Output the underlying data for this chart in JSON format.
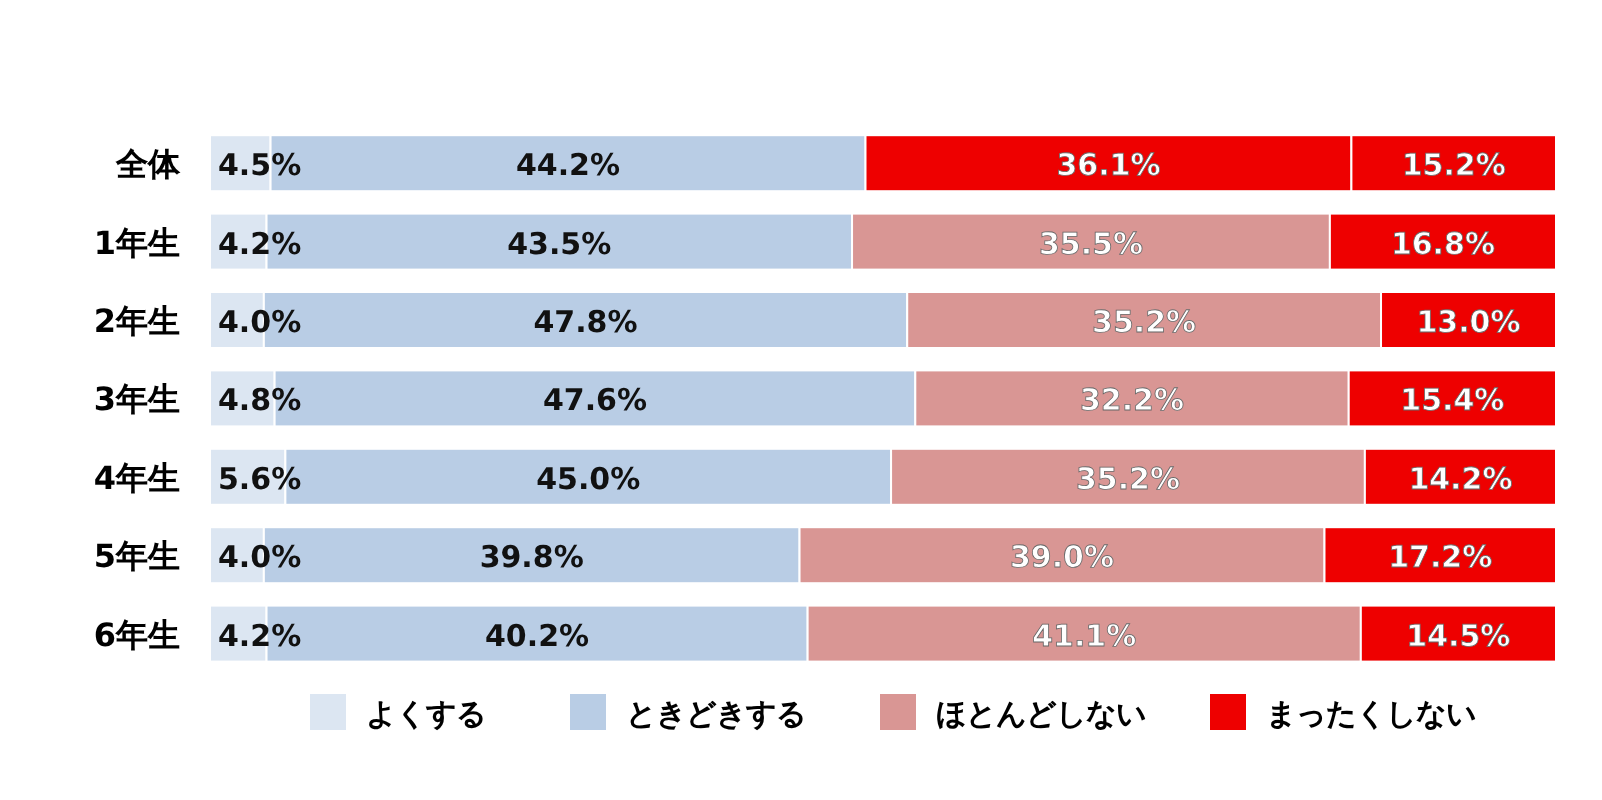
{
  "chart_data": {
    "type": "bar",
    "orientation": "horizontal",
    "stacked": true,
    "legend": "bottom",
    "categories": [
      "全体",
      "1年生",
      "2年生",
      "3年生",
      "4年生",
      "5年生",
      "6年生"
    ],
    "series": [
      {
        "name": "よくする",
        "color": "#dce6f2",
        "values": [
          4.5,
          4.2,
          4.0,
          4.8,
          5.6,
          4.0,
          4.2
        ],
        "value_labels": [
          "4.5%",
          "4.2%",
          "4.0%",
          "4.8%",
          "5.6%",
          "4.0%",
          "4.2%"
        ]
      },
      {
        "name": "ときどきする",
        "color": "#b9cde5",
        "values": [
          44.2,
          43.5,
          47.8,
          47.6,
          45.0,
          39.8,
          40.2
        ],
        "value_labels": [
          "44.2%",
          "43.5%",
          "47.8%",
          "47.6%",
          "45.0%",
          "39.8%",
          "40.2%"
        ]
      },
      {
        "name": "ほとんどしない",
        "color": "#d99694",
        "colors": [
          "#ee0000",
          "#d99694",
          "#d99694",
          "#d99694",
          "#d99694",
          "#d99694",
          "#d99694"
        ],
        "values": [
          36.1,
          35.5,
          35.2,
          32.2,
          35.2,
          39.0,
          41.1
        ],
        "value_labels": [
          "36.1%",
          "35.5%",
          "35.2%",
          "32.2%",
          "35.2%",
          "39.0%",
          "41.1%"
        ]
      },
      {
        "name": "まったくしない",
        "color": "#ee0000",
        "values": [
          15.2,
          16.8,
          13.0,
          15.4,
          14.2,
          17.2,
          14.5
        ],
        "value_labels": [
          "15.2%",
          "16.8%",
          "13.0%",
          "15.4%",
          "14.2%",
          "17.2%",
          "14.5%"
        ]
      }
    ]
  }
}
